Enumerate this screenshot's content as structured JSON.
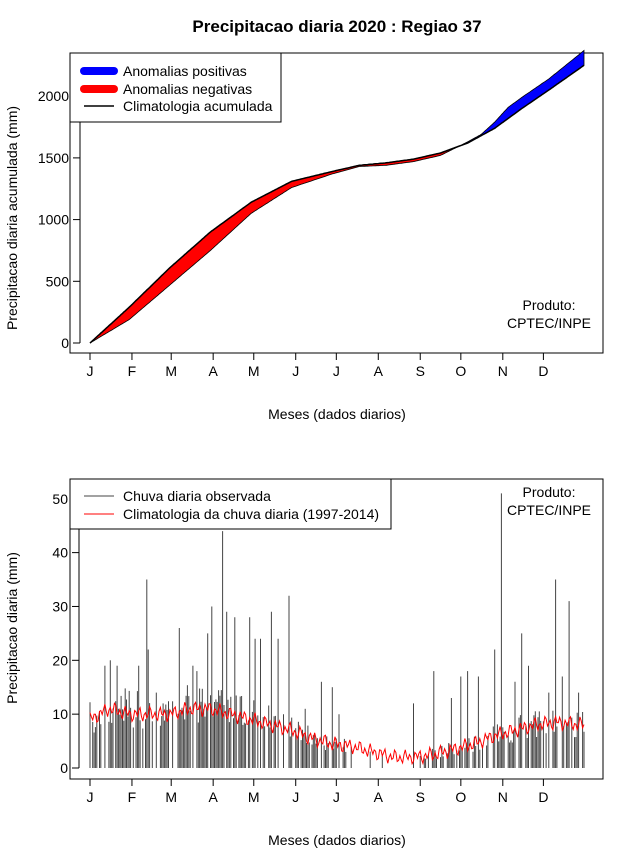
{
  "title": "Precipitacao diaria 2020 : Regiao 37",
  "colors": {
    "positive": "#0000ff",
    "negative": "#ff0000",
    "observed": "#444444",
    "climatology": "#ff0000",
    "axis": "#000000"
  },
  "chart_data": [
    {
      "type": "area",
      "name": "accumulated",
      "xlabel": "Meses (dados diarios)",
      "ylabel": "Precipitacao diaria acumulada (mm)",
      "xlim": [
        1,
        366
      ],
      "ylim": [
        0,
        2350
      ],
      "x_ticks": [
        {
          "label": "J",
          "day": 1
        },
        {
          "label": "F",
          "day": 32
        },
        {
          "label": "M",
          "day": 61
        },
        {
          "label": "A",
          "day": 92
        },
        {
          "label": "M",
          "day": 122
        },
        {
          "label": "J",
          "day": 153
        },
        {
          "label": "J",
          "day": 183
        },
        {
          "label": "A",
          "day": 214
        },
        {
          "label": "S",
          "day": 245
        },
        {
          "label": "O",
          "day": 275
        },
        {
          "label": "N",
          "day": 306
        },
        {
          "label": "D",
          "day": 336
        }
      ],
      "y_ticks": [
        0,
        500,
        1000,
        1500,
        2000
      ],
      "legend": {
        "position": "top-left",
        "items": [
          "Anomalias positivas",
          "Anomalias negativas",
          "Climatologia acumulada"
        ]
      },
      "annotation": [
        "Produto:",
        "CPTEC/INPE"
      ],
      "climatology_accumulated": {
        "days": [
          1,
          30,
          60,
          90,
          120,
          150,
          180,
          200,
          220,
          240,
          260,
          280,
          300,
          320,
          340,
          366
        ],
        "values": [
          0,
          290,
          610,
          900,
          1140,
          1310,
          1390,
          1440,
          1460,
          1490,
          1540,
          1620,
          1740,
          1900,
          2050,
          2250
        ]
      },
      "observed_accumulated": {
        "days": [
          1,
          30,
          60,
          90,
          120,
          150,
          180,
          200,
          220,
          240,
          260,
          280,
          290,
          300,
          310,
          320,
          340,
          366
        ],
        "values": [
          0,
          190,
          470,
          750,
          1050,
          1260,
          1370,
          1430,
          1440,
          1470,
          1520,
          1630,
          1690,
          1790,
          1910,
          1990,
          2140,
          2370
        ]
      }
    },
    {
      "type": "line",
      "name": "daily",
      "xlabel": "Meses (dados diarios)",
      "ylabel": "Precipitacao diaria (mm)",
      "xlim": [
        1,
        366
      ],
      "ylim": [
        0,
        52
      ],
      "x_ticks": [
        {
          "label": "J",
          "day": 1
        },
        {
          "label": "F",
          "day": 32
        },
        {
          "label": "M",
          "day": 61
        },
        {
          "label": "A",
          "day": 92
        },
        {
          "label": "M",
          "day": 122
        },
        {
          "label": "J",
          "day": 153
        },
        {
          "label": "J",
          "day": 183
        },
        {
          "label": "A",
          "day": 214
        },
        {
          "label": "S",
          "day": 245
        },
        {
          "label": "O",
          "day": 275
        },
        {
          "label": "N",
          "day": 306
        },
        {
          "label": "D",
          "day": 336
        }
      ],
      "y_ticks": [
        0,
        10,
        20,
        30,
        40,
        50
      ],
      "legend": {
        "position": "top-left",
        "items": [
          "Chuva diaria observada",
          "Climatologia da chuva diaria (1997-2014)"
        ]
      },
      "annotation": [
        "Produto:",
        "CPTEC/INPE"
      ],
      "climatology_daily": {
        "days": [
          1,
          15,
          30,
          45,
          60,
          75,
          90,
          105,
          120,
          135,
          150,
          165,
          180,
          195,
          210,
          225,
          240,
          255,
          270,
          285,
          300,
          315,
          330,
          345,
          366
        ],
        "values": [
          9,
          11,
          10,
          10,
          10,
          11,
          11,
          10,
          9,
          8,
          7,
          5.5,
          4.5,
          4,
          3,
          2,
          2,
          2.5,
          3.5,
          4.5,
          6,
          7,
          8,
          8.5,
          8
        ]
      },
      "observed_daily_peaks": [
        {
          "day": 12,
          "value": 19
        },
        {
          "day": 16,
          "value": 20
        },
        {
          "day": 21,
          "value": 19
        },
        {
          "day": 37,
          "value": 19
        },
        {
          "day": 43,
          "value": 35
        },
        {
          "day": 44,
          "value": 22
        },
        {
          "day": 50,
          "value": 14
        },
        {
          "day": 55,
          "value": 12
        },
        {
          "day": 67,
          "value": 26
        },
        {
          "day": 77,
          "value": 19
        },
        {
          "day": 80,
          "value": 18
        },
        {
          "day": 88,
          "value": 25
        },
        {
          "day": 91,
          "value": 30
        },
        {
          "day": 99,
          "value": 44
        },
        {
          "day": 102,
          "value": 29
        },
        {
          "day": 108,
          "value": 28
        },
        {
          "day": 119,
          "value": 28
        },
        {
          "day": 123,
          "value": 24
        },
        {
          "day": 127,
          "value": 24
        },
        {
          "day": 135,
          "value": 29
        },
        {
          "day": 140,
          "value": 24
        },
        {
          "day": 148,
          "value": 32
        },
        {
          "day": 160,
          "value": 11
        },
        {
          "day": 172,
          "value": 16
        },
        {
          "day": 180,
          "value": 15
        },
        {
          "day": 185,
          "value": 10
        },
        {
          "day": 240,
          "value": 12
        },
        {
          "day": 255,
          "value": 18
        },
        {
          "day": 268,
          "value": 13
        },
        {
          "day": 275,
          "value": 17
        },
        {
          "day": 280,
          "value": 18
        },
        {
          "day": 288,
          "value": 17
        },
        {
          "day": 300,
          "value": 22
        },
        {
          "day": 305,
          "value": 51
        },
        {
          "day": 315,
          "value": 16
        },
        {
          "day": 320,
          "value": 25
        },
        {
          "day": 325,
          "value": 19
        },
        {
          "day": 340,
          "value": 14
        },
        {
          "day": 345,
          "value": 35
        },
        {
          "day": 350,
          "value": 17
        },
        {
          "day": 355,
          "value": 31
        },
        {
          "day": 362,
          "value": 14
        }
      ]
    }
  ]
}
